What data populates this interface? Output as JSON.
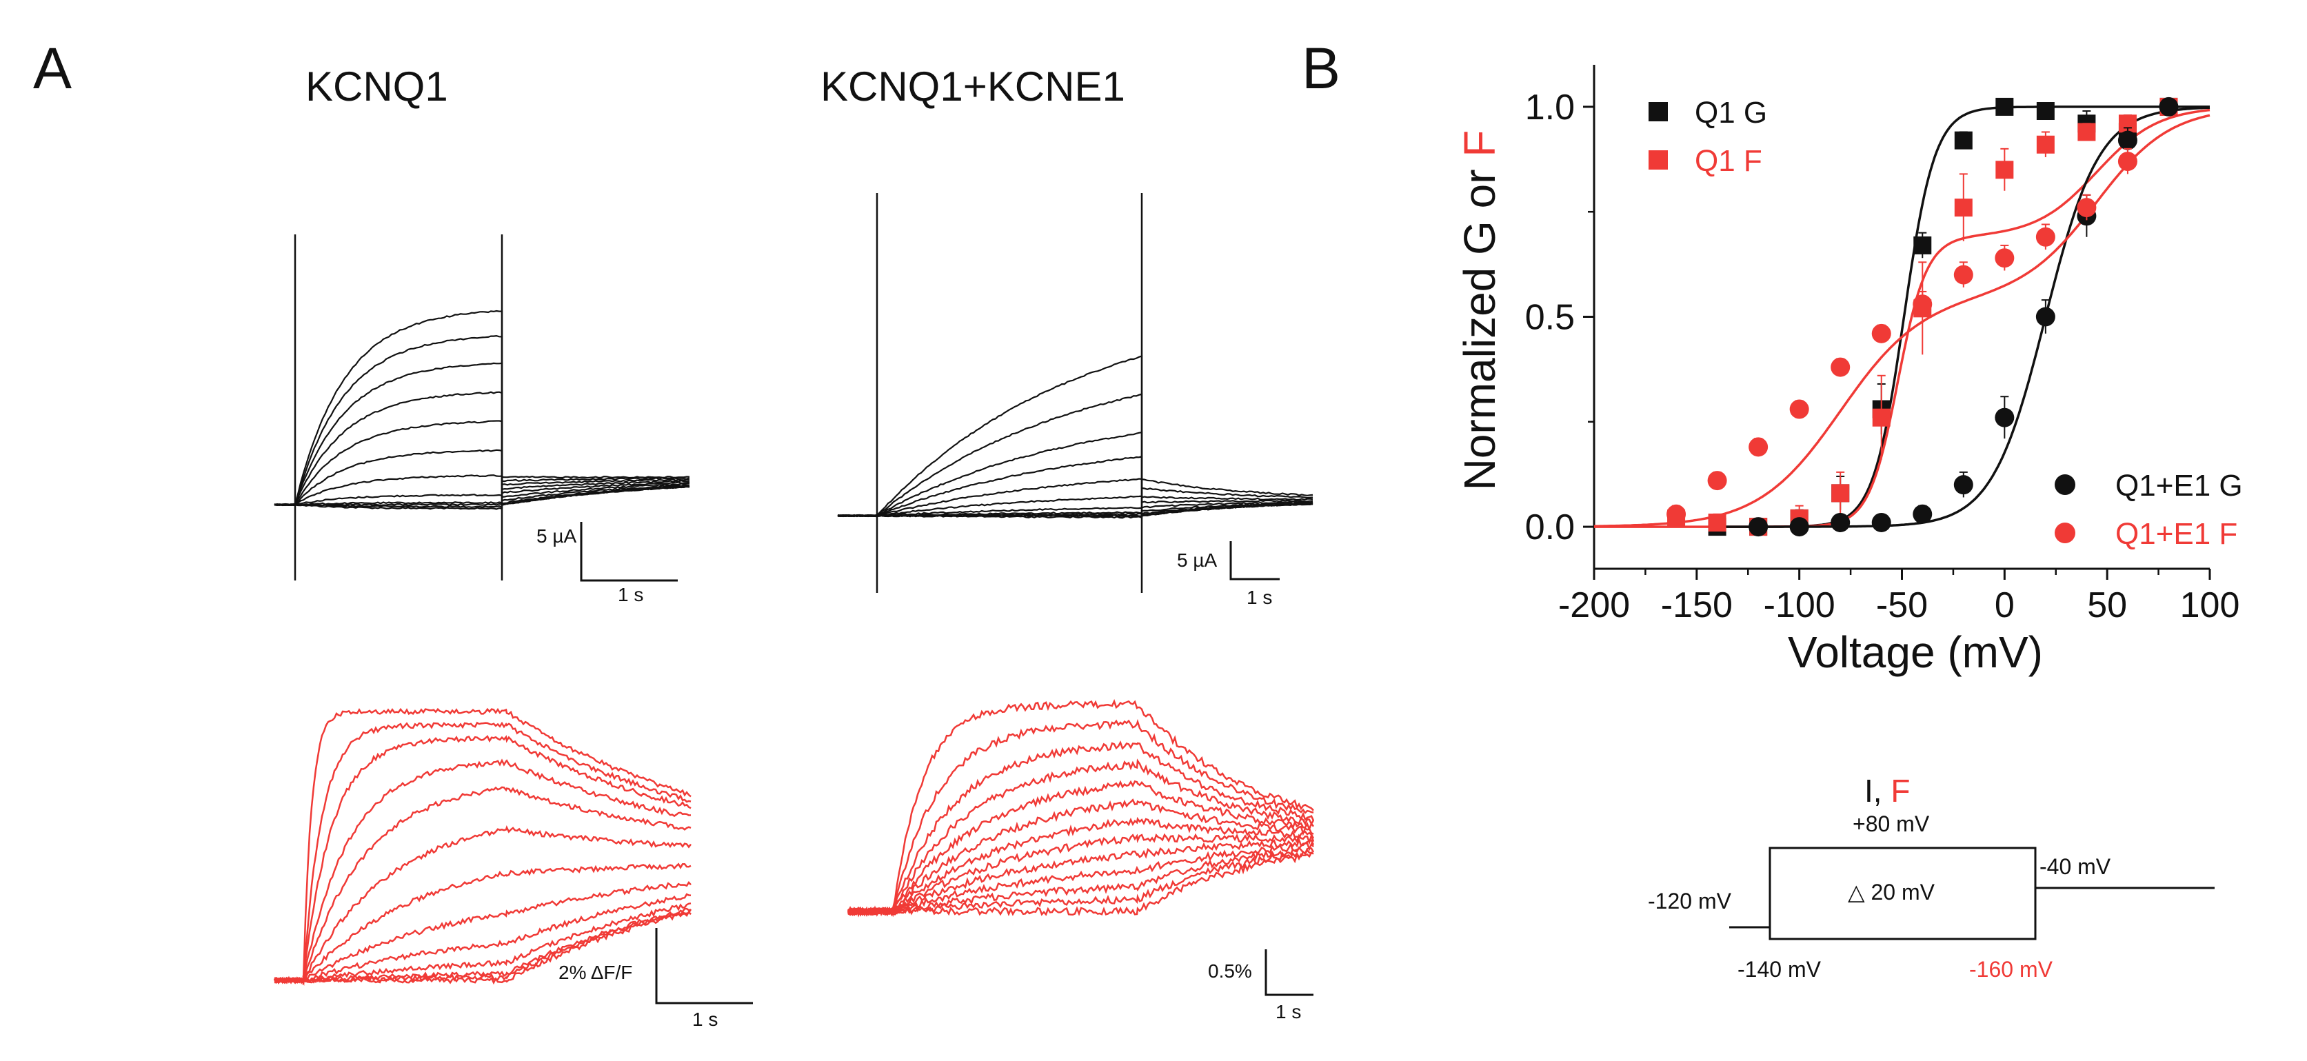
{
  "figure": {
    "colors": {
      "black": "#111111",
      "red": "#f03a36"
    }
  },
  "panel_a": {
    "letter": "A",
    "kcnq1_title": "KCNQ1",
    "kcnq1_kcne1_title": "KCNQ1+KCNE1",
    "kcnq1_current_scale": {
      "y_label": "5 µA",
      "x_label": "1 s"
    },
    "kcnq1_kcne1_current_scale": {
      "y_label": "5 µA",
      "x_label": "1 s"
    },
    "kcnq1_fluor_scale": {
      "y_label": "2% ΔF/F",
      "x_label": "1 s"
    },
    "kcnq1_kcne1_fluor_scale": {
      "y_label": "0.5%",
      "x_label": "1 s"
    }
  },
  "panel_b": {
    "letter": "B",
    "protocol": {
      "title_black": "I, ",
      "title_red": "F",
      "pulse_top": "+80 mV",
      "step": "△ 20 mV",
      "tail": "-40 mV",
      "holding": "-120 mV",
      "pulse_bottom_black": "-140 mV",
      "pulse_bottom_red": "-160 mV"
    }
  },
  "chart_data": [
    {
      "type": "line",
      "title": "KCNQ1 current traces",
      "kind": "voltage-clamp current families",
      "voltage_steps_mV": [
        -140,
        -120,
        -100,
        -80,
        -60,
        -40,
        -20,
        0,
        20,
        40,
        60,
        80
      ],
      "series_relative_amplitude": [
        -0.02,
        -0.01,
        0.0,
        0.01,
        0.05,
        0.15,
        0.28,
        0.43,
        0.58,
        0.73,
        0.87,
        1.0
      ],
      "activation_tau_s": 0.25,
      "tail_relative_amplitude": 0.14,
      "scale_bar": {
        "current": "5 µA",
        "time": "1 s"
      }
    },
    {
      "type": "line",
      "title": "KCNQ1+KCNE1 current traces",
      "kind": "voltage-clamp current families",
      "voltage_steps_mV": [
        -140,
        -120,
        -100,
        -80,
        -60,
        -40,
        -20,
        0,
        20,
        40,
        60,
        80
      ],
      "series_relative_amplitude": [
        -0.01,
        0.0,
        0.0,
        0.01,
        0.02,
        0.05,
        0.12,
        0.23,
        0.37,
        0.52,
        0.76,
        1.0
      ],
      "activation_tau_s": 1.5,
      "tail_relative_amplitude": 0.12,
      "scale_bar": {
        "current": "5 µA",
        "time": "1 s"
      }
    },
    {
      "type": "line",
      "title": "KCNQ1 fluorescence traces",
      "kind": "fluorescence ΔF/F families",
      "voltage_steps_mV": [
        -160,
        -140,
        -120,
        -100,
        -80,
        -60,
        -40,
        -20,
        0,
        20,
        40,
        60,
        80
      ],
      "series_relative_amplitude": [
        0.0,
        0.02,
        0.04,
        0.1,
        0.2,
        0.33,
        0.48,
        0.62,
        0.74,
        0.82,
        0.9,
        0.95,
        1.0
      ],
      "scale_bar": {
        "fluorescence": "2% ΔF/F",
        "time": "1 s"
      }
    },
    {
      "type": "line",
      "title": "KCNQ1+KCNE1 fluorescence traces",
      "kind": "fluorescence ΔF/F families",
      "voltage_steps_mV": [
        -160,
        -140,
        -120,
        -100,
        -80,
        -60,
        -40,
        -20,
        0,
        20,
        40,
        60,
        80
      ],
      "series_relative_amplitude": [
        0.0,
        0.08,
        0.16,
        0.25,
        0.34,
        0.42,
        0.5,
        0.58,
        0.66,
        0.74,
        0.82,
        0.91,
        1.0
      ],
      "scale_bar": {
        "fluorescence": "0.5%",
        "time": "1 s"
      }
    },
    {
      "type": "scatter",
      "title": "",
      "xlabel": "Voltage (mV)",
      "ylabel_parts": [
        {
          "text": "Normalized G or ",
          "color": "#111111"
        },
        {
          "text": "F",
          "color": "#f03a36"
        }
      ],
      "xlim": [
        -200,
        100
      ],
      "ylim": [
        -0.1,
        1.1
      ],
      "xticks": [
        -200,
        -150,
        -100,
        -50,
        0,
        50,
        100
      ],
      "yticks": [
        0.0,
        0.5,
        1.0
      ],
      "xtick_labels": [
        "-200",
        "-150",
        "-100",
        "-50",
        "0",
        "50",
        "100"
      ],
      "ytick_labels": [
        "0.0",
        "0.5",
        "1.0"
      ],
      "series": [
        {
          "name": "Q1 G",
          "marker": "square",
          "color": "#111111",
          "x": [
            -140,
            -120,
            -100,
            -80,
            -60,
            -40,
            -20,
            0,
            20,
            40,
            60,
            80
          ],
          "y": [
            0.0,
            0.0,
            0.02,
            0.08,
            0.28,
            0.67,
            0.92,
            1.0,
            0.99,
            0.96,
            0.94,
            1.0
          ],
          "err": [
            0.01,
            0.01,
            0.02,
            0.04,
            0.06,
            0.03,
            0.02,
            0.01,
            0.01,
            0.03,
            0.04,
            0.01
          ],
          "fit": {
            "kind": "boltzmann",
            "v_half": -49,
            "slope": 7.5
          }
        },
        {
          "name": "Q1 F",
          "marker": "square",
          "color": "#f03a36",
          "x": [
            -160,
            -140,
            -120,
            -100,
            -80,
            -60,
            -40,
            -20,
            0,
            20,
            40,
            60,
            80
          ],
          "y": [
            0.02,
            0.01,
            0.0,
            0.02,
            0.08,
            0.26,
            0.52,
            0.76,
            0.85,
            0.91,
            0.94,
            0.96,
            1.0
          ],
          "err": [
            0.02,
            0.02,
            0.02,
            0.03,
            0.05,
            0.1,
            0.11,
            0.08,
            0.05,
            0.03,
            0.02,
            0.02,
            0.01
          ],
          "fit": {
            "kind": "double-boltzmann",
            "a1": 0.69,
            "v1": -52,
            "k1": 7,
            "v2": 45,
            "k2": 15
          }
        },
        {
          "name": "Q1+E1 G",
          "marker": "circle",
          "color": "#111111",
          "x": [
            -120,
            -100,
            -80,
            -60,
            -40,
            -20,
            0,
            20,
            40,
            60,
            80
          ],
          "y": [
            0.0,
            0.0,
            0.01,
            0.01,
            0.03,
            0.1,
            0.26,
            0.5,
            0.74,
            0.92,
            1.0
          ],
          "err": [
            0.01,
            0.01,
            0.01,
            0.01,
            0.02,
            0.03,
            0.05,
            0.04,
            0.05,
            0.03,
            0.01
          ],
          "fit": {
            "kind": "boltzmann",
            "v_half": 20,
            "slope": 13
          }
        },
        {
          "name": "Q1+E1 F",
          "marker": "circle",
          "color": "#f03a36",
          "x": [
            -160,
            -140,
            -120,
            -100,
            -80,
            -60,
            -40,
            -20,
            0,
            20,
            40,
            60
          ],
          "y": [
            0.03,
            0.11,
            0.19,
            0.28,
            0.38,
            0.46,
            0.53,
            0.6,
            0.64,
            0.69,
            0.76,
            0.87
          ],
          "err": [
            0.02,
            0.02,
            0.02,
            0.02,
            0.02,
            0.02,
            0.03,
            0.03,
            0.03,
            0.03,
            0.03,
            0.03
          ],
          "fit": {
            "kind": "double-boltzmann",
            "a1": 0.55,
            "v1": -80,
            "k1": 20,
            "v2": 45,
            "k2": 18
          }
        }
      ]
    }
  ]
}
